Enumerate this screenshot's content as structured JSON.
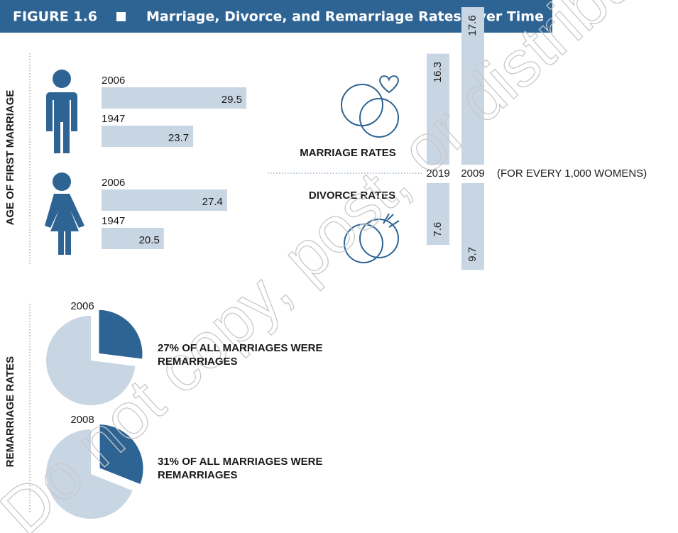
{
  "header": {
    "figure": "FIGURE 1.6",
    "title": "Marriage, Divorce, and Remarriage Rates Over Time"
  },
  "watermark": "Do not copy, post, or distribute",
  "chart_data": [
    {
      "type": "hbar",
      "axis_label": "AGE OF FIRST MARRIAGE",
      "categories": [
        "2006",
        "1947",
        "2006",
        "1947"
      ],
      "values": [
        29.5,
        23.7,
        27.4,
        20.5
      ],
      "xlim": [
        13.7,
        29.5
      ],
      "color": "#c8d5e2"
    },
    {
      "type": "updown",
      "categories": [
        "2019",
        "2009"
      ],
      "note": "(FOR EVERY 1,000 WOMENS)",
      "series": [
        {
          "name": "MARRIAGE RATES",
          "color": "#c8d5e2",
          "values": [
            16.3,
            17.6
          ]
        },
        {
          "name": "DIVORCE RATES",
          "color": "#c8d5e2",
          "values": [
            7.6,
            9.7
          ],
          "axis": "y2"
        }
      ],
      "ylim": [
        13.2,
        17.7
      ],
      "y2lim": [
        2.4,
        9.8
      ]
    },
    {
      "type": "pie",
      "axis_label": "REMARRIAGE RATES",
      "categories": [
        "2006",
        "2008"
      ],
      "values": [
        27,
        31
      ],
      "value_labels": [
        "27% OF ALL MARRIAGES WERE REMARRIAGES",
        "31% OF ALL MARRIAGES WERE REMARRIAGES"
      ],
      "color": "#2e6493",
      "rest_color": "#c8d5e2"
    }
  ]
}
